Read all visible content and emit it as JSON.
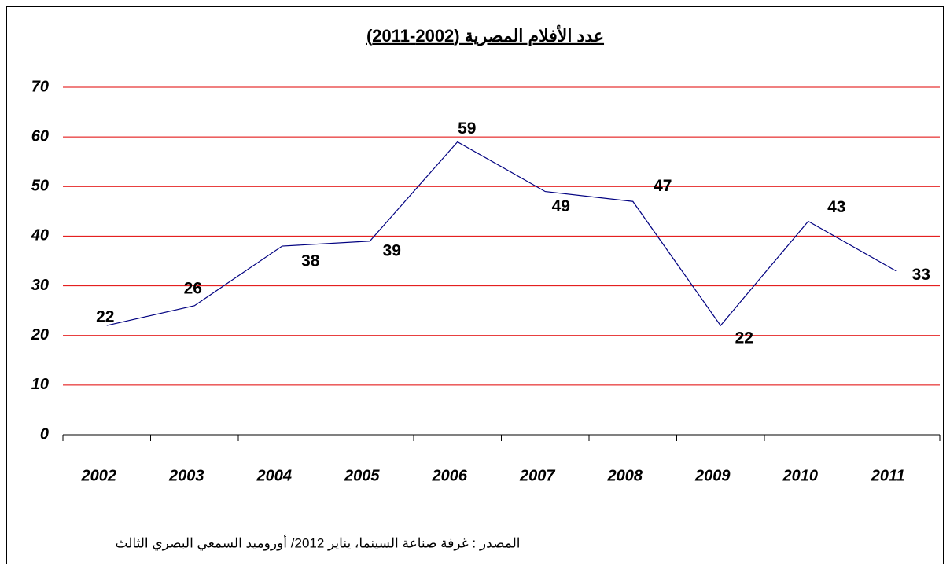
{
  "chart_data": {
    "type": "line",
    "title": "عدد الأفلام المصرية (2002-2011)",
    "source": "المصدر : غرفة صناعة السينما، يناير 2012/ أوروميد السمعي البصري الثالث",
    "categories": [
      "2002",
      "2003",
      "2004",
      "2005",
      "2006",
      "2007",
      "2008",
      "2009",
      "2010",
      "2011"
    ],
    "series": [
      {
        "name": "عدد الأفلام",
        "color": "#000080",
        "values": [
          22,
          26,
          38,
          39,
          59,
          49,
          47,
          22,
          43,
          33
        ]
      }
    ],
    "ylim": [
      0,
      70
    ],
    "yticks": [
      0,
      10,
      20,
      30,
      40,
      50,
      60,
      70
    ],
    "grid": true,
    "grid_color": "#e00000"
  }
}
